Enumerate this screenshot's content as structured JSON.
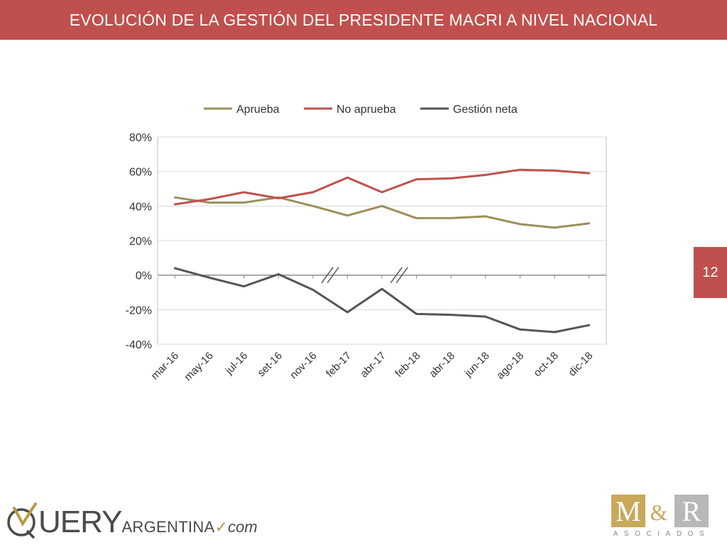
{
  "header": {
    "title": "EVOLUCIÓN DE LA GESTIÓN DEL PRESIDENTE MACRI A NIVEL NACIONAL"
  },
  "page_number": "12",
  "logos": {
    "query": {
      "word": "UERY",
      "sub": "ARGENTINA",
      "suffix": "com"
    },
    "mr": {
      "m": "M",
      "amp": "&",
      "r": "R",
      "sub": "ASOCIADOS"
    }
  },
  "colors": {
    "header_bg": "#c0504d",
    "aprueba": "#9c8f5a",
    "no_aprueba": "#c0504d",
    "gestion_neta": "#555555"
  },
  "chart_data": {
    "type": "line",
    "title": "",
    "xlabel": "",
    "ylabel": "",
    "categories": [
      "mar-16",
      "may-16",
      "jul-16",
      "set-16",
      "nov-16",
      "feb-17",
      "abr-17",
      "feb-18",
      "abr-18",
      "jun-18",
      "ago-18",
      "oct-18",
      "dic-18"
    ],
    "ylim": [
      -40,
      80
    ],
    "yticks": [
      80,
      60,
      40,
      20,
      0,
      -20,
      -40
    ],
    "ytick_labels": [
      "80%",
      "60%",
      "40%",
      "20%",
      "0%",
      "-20%",
      "-40%"
    ],
    "grid": true,
    "legend_position": "top",
    "axis_breaks_after": [
      "nov-16",
      "abr-17"
    ],
    "series": [
      {
        "name": "Aprueba",
        "values": [
          45,
          42,
          42,
          45,
          40,
          34.5,
          40,
          33,
          33,
          34,
          29.5,
          27.5,
          30
        ]
      },
      {
        "name": "No aprueba",
        "values": [
          41,
          44,
          48,
          44.5,
          48,
          56.5,
          48,
          55.5,
          56,
          58,
          61,
          60.5,
          59
        ]
      },
      {
        "name": "Gestión neta",
        "values": [
          4,
          -1.5,
          -6.5,
          0.5,
          -8.5,
          -21.5,
          -8,
          -22.5,
          -23,
          -24,
          -31.5,
          -33,
          -29
        ]
      }
    ]
  }
}
